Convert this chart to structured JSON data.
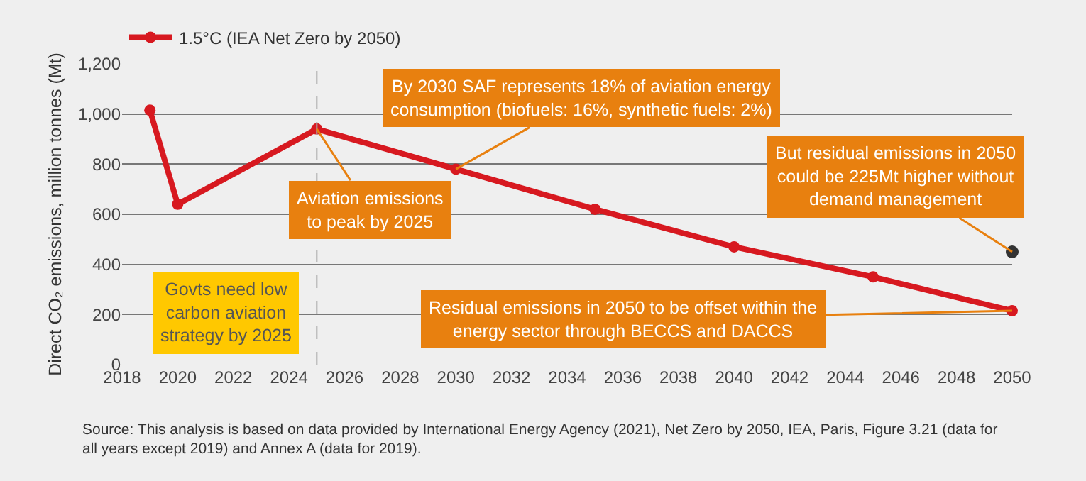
{
  "chart_data": {
    "type": "line",
    "ylabel": "Direct CO₂ emissions, million tonnes (Mt)",
    "series": [
      {
        "name": "1.5°C (IEA Net Zero by 2050)",
        "color": "#d71920",
        "x": [
          2019,
          2020,
          2025,
          2030,
          2035,
          2040,
          2045,
          2050
        ],
        "values": [
          1015,
          640,
          940,
          780,
          620,
          470,
          350,
          215
        ]
      },
      {
        "type": "scatter",
        "color": "#333333",
        "x": [
          2050
        ],
        "values": [
          450
        ]
      }
    ],
    "xlim": [
      2018,
      2050
    ],
    "xticks": [
      2018,
      2020,
      2022,
      2024,
      2026,
      2028,
      2030,
      2032,
      2034,
      2036,
      2038,
      2040,
      2042,
      2044,
      2046,
      2048,
      2050
    ],
    "ylim": [
      0,
      1200
    ],
    "yticks": [
      0,
      200,
      400,
      600,
      800,
      {
        "value": 1000,
        "label": "1,000"
      },
      {
        "value": 1200,
        "label": "1,200"
      }
    ],
    "grid": "y",
    "legend": "top left",
    "marker": "circle",
    "line_style": "solid",
    "ref_lines": [
      {
        "axis": "x",
        "value": 2025,
        "label": null,
        "color": "#aaaaaa",
        "line_style": "dashed"
      }
    ],
    "annotations": [
      {
        "text": "Aviation emissions\nto peak by 2025",
        "x": 2025,
        "y": 940
      },
      {
        "text": "By 2030 SAF represents 18% of aviation energy\nconsumption (biofuels: 16%, synthetic fuels: 2%)",
        "x": 2030,
        "y": 780
      },
      {
        "text": "But residual emissions in 2050\ncould be 225Mt higher without\ndemand management",
        "x": 2050,
        "y": 450
      },
      {
        "text": "Residual emissions in 2050 to be offset within the\nenergy sector through BECCS and DACCS",
        "x": 2050,
        "y": 215
      },
      {
        "text": "Govts need low\ncarbon aviation\nstrategy by 2025",
        "x": 2025,
        "y": 200
      },
      "Source: This analysis is based on data provided by International Energy Agency (2021), Net Zero by 2050, IEA, Paris, Figure 3.21 (data for\nall years except 2019) and Annex A (data for 2019)."
    ]
  }
}
